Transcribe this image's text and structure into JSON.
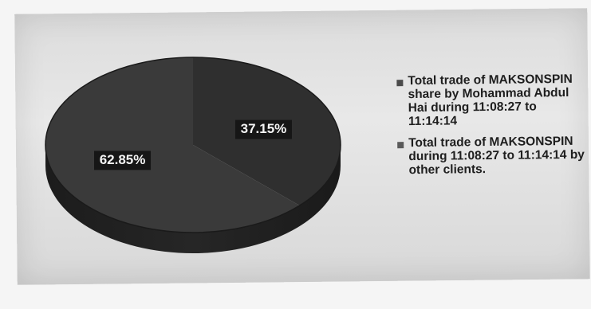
{
  "chart_data": {
    "type": "pie",
    "title": "",
    "slices": [
      {
        "label": "Total trade of MAKSONSPIN share by Mohammad Abdul Hai during 11:08:27 to 11:14:14",
        "value": 37.15,
        "display": "37.15%",
        "color": "#2f2f2f"
      },
      {
        "label": "Total trade of MAKSONSPIN during 11:08:27 to 11:14:14 by other clients.",
        "value": 62.85,
        "display": "62.85%",
        "color": "#3a3a3a"
      }
    ],
    "legend_position": "right",
    "style": "3d"
  },
  "legend": {
    "items": [
      {
        "text": "Total trade of MAKSONSPIN share by Mohammad Abdul Hai during 11:08:27 to 11:14:14",
        "color": "#4a4a4a"
      },
      {
        "text": "Total trade of MAKSONSPIN during 11:08:27 to 11:14:14 by other clients.",
        "color": "#5a5a5a"
      }
    ]
  },
  "labels": {
    "slice_1": "37.15%",
    "slice_2": "62.85%"
  }
}
